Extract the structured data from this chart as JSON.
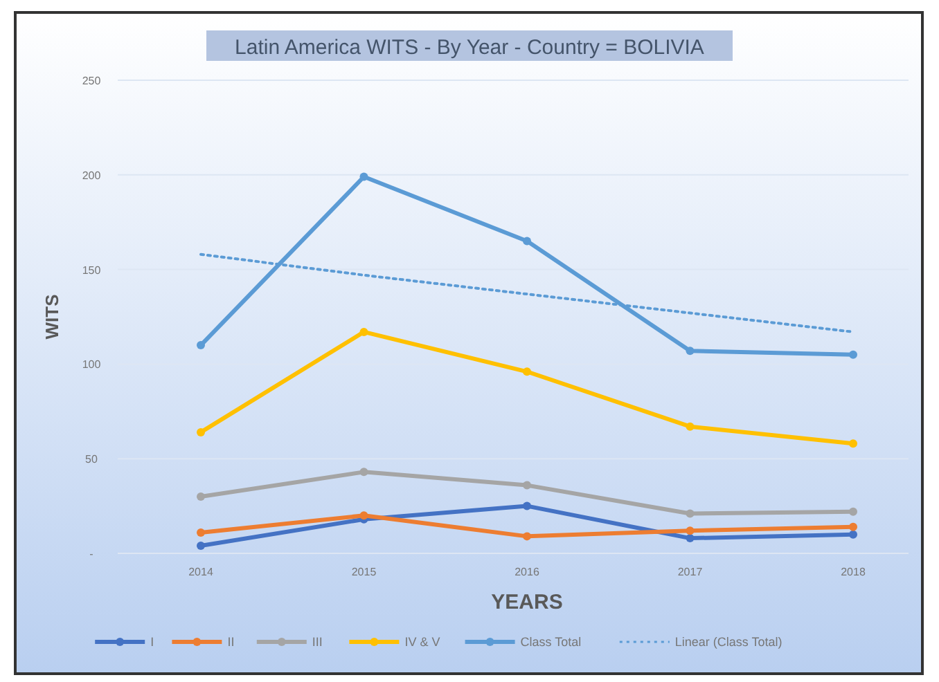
{
  "chart_data": {
    "type": "line",
    "title": "Latin America WITS - By Year - Country = BOLIVIA",
    "xlabel": "YEARS",
    "ylabel": "WITS",
    "categories": [
      "2014",
      "2015",
      "2016",
      "2017",
      "2018"
    ],
    "series": [
      {
        "name": "I",
        "color": "#4472c4",
        "values": [
          4,
          18,
          25,
          8,
          10
        ],
        "marker": "circle"
      },
      {
        "name": "II",
        "color": "#ed7d31",
        "values": [
          11,
          20,
          9,
          12,
          14
        ],
        "marker": "circle"
      },
      {
        "name": "III",
        "color": "#a5a5a5",
        "values": [
          30,
          43,
          36,
          21,
          22
        ],
        "marker": "circle"
      },
      {
        "name": "IV & V",
        "color": "#ffc000",
        "values": [
          64,
          117,
          96,
          67,
          58
        ],
        "marker": "circle"
      },
      {
        "name": "Class Total",
        "color": "#5b9bd5",
        "values": [
          110,
          199,
          165,
          107,
          105
        ],
        "marker": "circle"
      },
      {
        "name": "Linear (Class Total)",
        "color": "#5b9bd5",
        "values": [
          158,
          147,
          137,
          127,
          117
        ],
        "marker": "none",
        "line_style": "dotted"
      }
    ],
    "ylim": [
      0,
      250
    ],
    "yticks": [
      {
        "value": 0,
        "label": "-"
      },
      50,
      100,
      150,
      200,
      250
    ],
    "grid": "y",
    "legend": "bottom"
  }
}
